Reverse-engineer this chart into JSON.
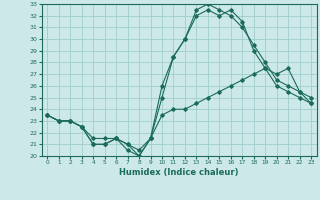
{
  "xlabel": "Humidex (Indice chaleur)",
  "bg_color": "#cce8e8",
  "grid_color": "#a0cccc",
  "line_color": "#1a6b5a",
  "xlim": [
    -0.5,
    23.5
  ],
  "ylim": [
    20,
    33
  ],
  "xticks": [
    0,
    1,
    2,
    3,
    4,
    5,
    6,
    7,
    8,
    9,
    10,
    11,
    12,
    13,
    14,
    15,
    16,
    17,
    18,
    19,
    20,
    21,
    22,
    23
  ],
  "yticks": [
    20,
    21,
    22,
    23,
    24,
    25,
    26,
    27,
    28,
    29,
    30,
    31,
    32,
    33
  ],
  "series1": [
    23.5,
    23.0,
    23.0,
    22.5,
    21.0,
    21.0,
    21.5,
    20.5,
    20.0,
    21.5,
    25.0,
    28.5,
    30.0,
    32.5,
    33.0,
    32.5,
    32.0,
    31.0,
    29.5,
    28.0,
    26.5,
    26.0,
    25.5,
    25.0
  ],
  "series2": [
    23.5,
    23.0,
    23.0,
    22.5,
    21.0,
    21.0,
    21.5,
    21.0,
    20.0,
    21.5,
    26.0,
    28.5,
    30.0,
    32.0,
    32.5,
    32.0,
    32.5,
    31.5,
    29.0,
    27.5,
    26.0,
    25.5,
    25.0,
    24.5
  ],
  "series3": [
    23.5,
    23.0,
    23.0,
    22.5,
    21.5,
    21.5,
    21.5,
    21.0,
    20.5,
    21.5,
    23.5,
    24.0,
    24.0,
    24.5,
    25.0,
    25.5,
    26.0,
    26.5,
    27.0,
    27.5,
    27.0,
    27.5,
    25.5,
    24.5
  ]
}
